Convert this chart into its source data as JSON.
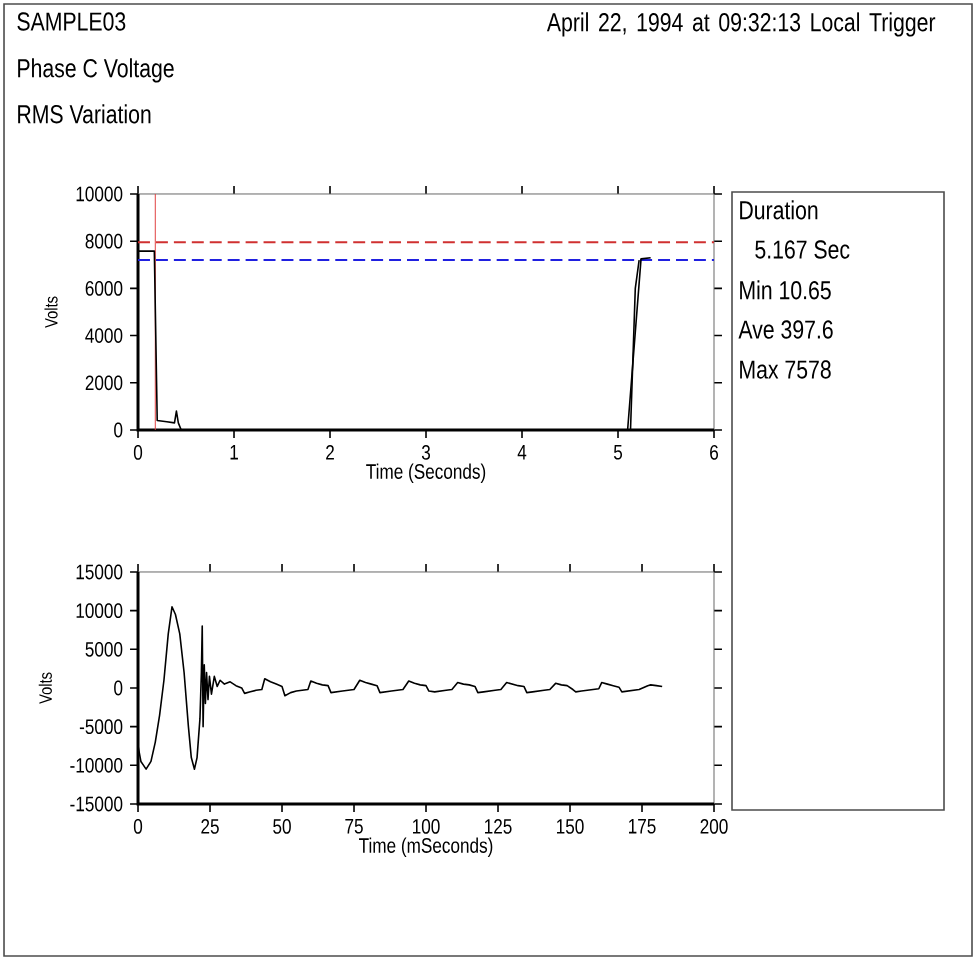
{
  "chart_data": [
    {
      "type": "line",
      "title": "SAMPLE03",
      "subtitle": "Phase C Voltage",
      "annotations": [
        "RMS Variation",
        "April 22, 1994 at 09:32:13 Local Trigger"
      ],
      "xlabel": "Time (Seconds)",
      "ylabel": "Volts",
      "xlim": [
        0,
        6
      ],
      "xticks": [
        0,
        1,
        2,
        3,
        4,
        5,
        6
      ],
      "ylim": [
        0,
        10000
      ],
      "yticks": [
        0,
        2000,
        4000,
        6000,
        8000,
        10000
      ],
      "ref_lines": [
        {
          "axis": "y",
          "value": 7950,
          "color": "#d03030",
          "line_style": "dashed"
        },
        {
          "axis": "y",
          "value": 7200,
          "color": "#2020e0",
          "line_style": "dashed"
        },
        {
          "axis": "x",
          "value": 0.18,
          "color": "#e04040",
          "line_style": "solid"
        }
      ],
      "series": [
        {
          "color": "#000000",
          "x": [
            0,
            0.17,
            0.2,
            0.3,
            0.38,
            0.4,
            0.42,
            0.45,
            5.1,
            5.24,
            5.34
          ],
          "values": [
            7578,
            7578,
            400,
            350,
            300,
            800,
            300,
            0,
            0,
            7250,
            7300
          ]
        },
        {
          "color": "#000000",
          "x": [
            5.13,
            5.18,
            5.22
          ],
          "values": [
            0,
            6000,
            7200
          ]
        }
      ]
    },
    {
      "type": "line",
      "xlabel": "Time (mSeconds)",
      "ylabel": "Volts",
      "xlim": [
        0,
        200
      ],
      "xticks": [
        0,
        25,
        50,
        75,
        100,
        125,
        150,
        175,
        200
      ],
      "ylim": [
        -15000,
        15000
      ],
      "yticks": [
        -15000,
        -10000,
        -5000,
        0,
        5000,
        10000,
        15000
      ],
      "series": [
        {
          "color": "#000000",
          "x": [
            0,
            1,
            2.8,
            4.5,
            6,
            7.5,
            9,
            10.5,
            11.8,
            13,
            14.5,
            16,
            17.5,
            18.5,
            19.6,
            20.5,
            21.5,
            22,
            22.3,
            22.6,
            23,
            23.4,
            23.8,
            24.3,
            24.8,
            25.5,
            26.5,
            27.5,
            28.5,
            30,
            32,
            34,
            36,
            37,
            39,
            41,
            43,
            44,
            46,
            48,
            50,
            51,
            53,
            55,
            57,
            59,
            60,
            62,
            64,
            66,
            67,
            69,
            71,
            73,
            75,
            77,
            79,
            81,
            83,
            84,
            86,
            88,
            90,
            92,
            94,
            96,
            98,
            100,
            101,
            103,
            105,
            107,
            109,
            111,
            113,
            115,
            117,
            118,
            120,
            122,
            124,
            126,
            128,
            130,
            132,
            134,
            135,
            137,
            139,
            141,
            143,
            145,
            147,
            149,
            151,
            152,
            154,
            156,
            158,
            160,
            161,
            163,
            165,
            167,
            168,
            170,
            172,
            174,
            177,
            178,
            180,
            182
          ],
          "values": [
            -7500,
            -9500,
            -10500,
            -9500,
            -7000,
            -3500,
            1000,
            7000,
            10500,
            9500,
            7000,
            2000,
            -5000,
            -9000,
            -10500,
            -9000,
            -4000,
            2000,
            8000,
            -5000,
            3000,
            -2000,
            2000,
            -1500,
            1500,
            -800,
            1500,
            200,
            1000,
            500,
            800,
            300,
            0,
            -700,
            -500,
            -300,
            -200,
            1200,
            800,
            500,
            200,
            -1000,
            -600,
            -400,
            -300,
            -200,
            900,
            600,
            400,
            300,
            -600,
            -500,
            -400,
            -300,
            -200,
            1000,
            700,
            500,
            300,
            -600,
            -500,
            -400,
            -300,
            -200,
            900,
            600,
            400,
            300,
            -400,
            -500,
            -400,
            -300,
            -200,
            700,
            500,
            400,
            200,
            -600,
            -500,
            -400,
            -300,
            -200,
            700,
            500,
            300,
            200,
            -600,
            -500,
            -400,
            -300,
            -200,
            600,
            400,
            300,
            -200,
            -500,
            -400,
            -300,
            -200,
            -100,
            700,
            500,
            300,
            100,
            -500,
            -400,
            -300,
            -200,
            300,
            400,
            300,
            200
          ]
        }
      ]
    },
    {
      "type": "other",
      "annotations": [
        "Duration",
        "5.167 Sec",
        "Min  10.65",
        "Ave 397.6",
        "Max 7578"
      ]
    }
  ]
}
